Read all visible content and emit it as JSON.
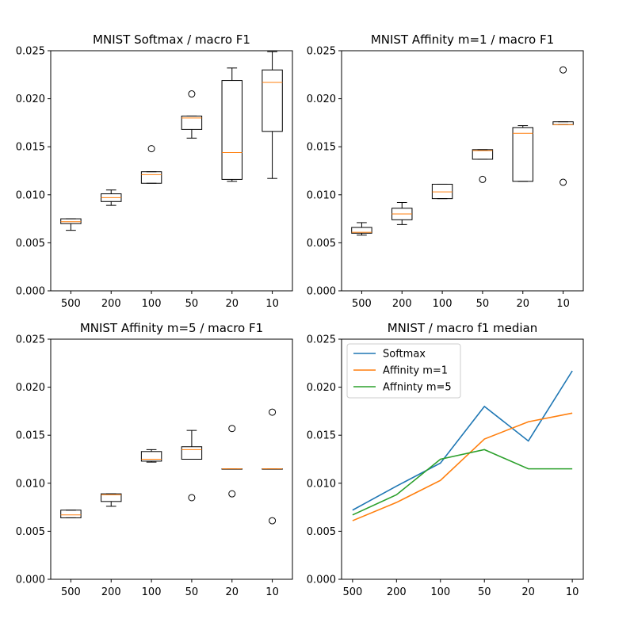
{
  "chart_data": [
    {
      "type": "box",
      "title": "MNIST Softmax / macro F1",
      "categories": [
        "500",
        "200",
        "100",
        "50",
        "20",
        "10"
      ],
      "ylim": [
        0,
        0.025
      ],
      "yticks": [
        "0.000",
        "0.005",
        "0.010",
        "0.015",
        "0.020",
        "0.025"
      ],
      "grid": false,
      "boxes": [
        {
          "whislo": 0.0063,
          "q1": 0.007,
          "med": 0.0072,
          "q3": 0.0075,
          "whishi": 0.0075,
          "fliers": []
        },
        {
          "whislo": 0.0089,
          "q1": 0.0093,
          "med": 0.0097,
          "q3": 0.0101,
          "whishi": 0.0105,
          "fliers": []
        },
        {
          "whislo": 0.0112,
          "q1": 0.0112,
          "med": 0.0121,
          "q3": 0.0124,
          "whishi": 0.0124,
          "fliers": [
            0.0148
          ]
        },
        {
          "whislo": 0.0159,
          "q1": 0.0168,
          "med": 0.018,
          "q3": 0.0182,
          "whishi": 0.0182,
          "fliers": [
            0.0205
          ]
        },
        {
          "whislo": 0.0114,
          "q1": 0.0116,
          "med": 0.0144,
          "q3": 0.0219,
          "whishi": 0.0232,
          "fliers": []
        },
        {
          "whislo": 0.0117,
          "q1": 0.0166,
          "med": 0.0217,
          "q3": 0.023,
          "whishi": 0.0249,
          "fliers": []
        }
      ]
    },
    {
      "type": "box",
      "title": "MNIST Affinity m=1 / macro F1",
      "categories": [
        "500",
        "200",
        "100",
        "50",
        "20",
        "10"
      ],
      "ylim": [
        0,
        0.025
      ],
      "yticks": [
        "0.000",
        "0.005",
        "0.010",
        "0.015",
        "0.020",
        "0.025"
      ],
      "grid": false,
      "boxes": [
        {
          "whislo": 0.0058,
          "q1": 0.006,
          "med": 0.0061,
          "q3": 0.0066,
          "whishi": 0.0071,
          "fliers": []
        },
        {
          "whislo": 0.0069,
          "q1": 0.0074,
          "med": 0.008,
          "q3": 0.0086,
          "whishi": 0.0092,
          "fliers": []
        },
        {
          "whislo": 0.0096,
          "q1": 0.0096,
          "med": 0.0103,
          "q3": 0.0111,
          "whishi": 0.0111,
          "fliers": []
        },
        {
          "whislo": 0.0137,
          "q1": 0.0137,
          "med": 0.0146,
          "q3": 0.0147,
          "whishi": 0.0147,
          "fliers": [
            0.0116
          ]
        },
        {
          "whislo": 0.0114,
          "q1": 0.0114,
          "med": 0.0164,
          "q3": 0.017,
          "whishi": 0.0172,
          "fliers": []
        },
        {
          "whislo": 0.0173,
          "q1": 0.0173,
          "med": 0.0173,
          "q3": 0.0176,
          "whishi": 0.0176,
          "fliers": [
            0.023,
            0.0113
          ]
        }
      ]
    },
    {
      "type": "box",
      "title": "MNIST Affinity m=5 / macro F1",
      "categories": [
        "500",
        "200",
        "100",
        "50",
        "20",
        "10"
      ],
      "ylim": [
        0,
        0.025
      ],
      "yticks": [
        "0.000",
        "0.005",
        "0.010",
        "0.015",
        "0.020",
        "0.025"
      ],
      "grid": false,
      "boxes": [
        {
          "whislo": 0.0064,
          "q1": 0.0064,
          "med": 0.0067,
          "q3": 0.0072,
          "whishi": 0.0072,
          "fliers": []
        },
        {
          "whislo": 0.0076,
          "q1": 0.0081,
          "med": 0.0088,
          "q3": 0.0089,
          "whishi": 0.0089,
          "fliers": []
        },
        {
          "whislo": 0.0122,
          "q1": 0.0123,
          "med": 0.0125,
          "q3": 0.0133,
          "whishi": 0.0135,
          "fliers": []
        },
        {
          "whislo": 0.0125,
          "q1": 0.0125,
          "med": 0.0135,
          "q3": 0.0138,
          "whishi": 0.0155,
          "fliers": [
            0.0085
          ]
        },
        {
          "whislo": 0.0115,
          "q1": 0.0115,
          "med": 0.0115,
          "q3": 0.0115,
          "whishi": 0.0115,
          "fliers": [
            0.0157,
            0.0089
          ]
        },
        {
          "whislo": 0.0115,
          "q1": 0.0115,
          "med": 0.0115,
          "q3": 0.0115,
          "whishi": 0.0115,
          "fliers": [
            0.0174,
            0.0061
          ]
        }
      ]
    },
    {
      "type": "line",
      "title": "MNIST / macro f1 median",
      "categories": [
        "500",
        "200",
        "100",
        "50",
        "20",
        "10"
      ],
      "ylim": [
        0,
        0.025
      ],
      "yticks": [
        "0.000",
        "0.005",
        "0.010",
        "0.015",
        "0.020",
        "0.025"
      ],
      "grid": false,
      "legend_position": "top-left",
      "series": [
        {
          "name": "Softmax",
          "color": "#1f77b4",
          "values": [
            0.0072,
            0.0097,
            0.0121,
            0.018,
            0.0144,
            0.0217
          ]
        },
        {
          "name": "Affinity m=1",
          "color": "#ff7f0e",
          "values": [
            0.0061,
            0.008,
            0.0103,
            0.0146,
            0.0164,
            0.0173
          ]
        },
        {
          "name": "Affninty m=5",
          "color": "#2ca02c",
          "values": [
            0.0067,
            0.0088,
            0.0125,
            0.0135,
            0.0115,
            0.0115
          ]
        }
      ]
    }
  ],
  "colors": {
    "median": "#ff7f0e",
    "box": "#000000",
    "axes": "#000000"
  }
}
